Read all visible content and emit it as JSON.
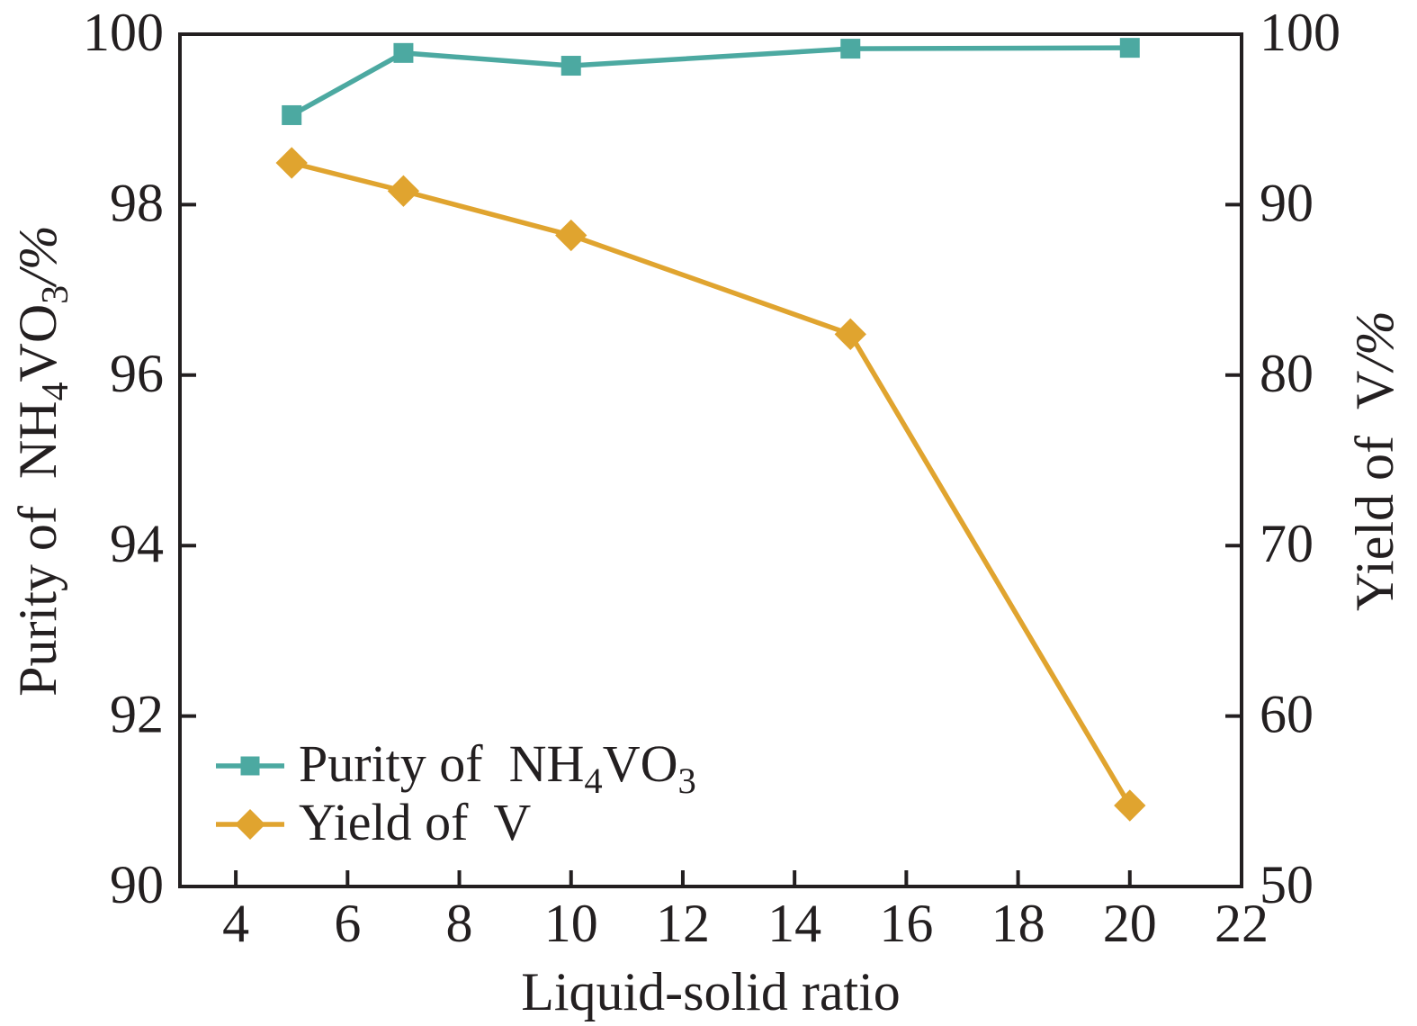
{
  "chart_data": {
    "type": "line",
    "title": "",
    "xlabel": "Liquid-solid ratio",
    "x": [
      5,
      7,
      10,
      15,
      20
    ],
    "xlim": [
      3,
      22
    ],
    "x_ticks": [
      4,
      6,
      8,
      10,
      12,
      14,
      16,
      18,
      20,
      22
    ],
    "grid": false,
    "background": "#FFFFFF",
    "axis_color": "#231F20",
    "left_axis": {
      "label": "Purity of NH4VO3/%",
      "label_segments": [
        {
          "t": "Purity of  NH"
        },
        {
          "t": "4",
          "sub": true
        },
        {
          "t": "VO"
        },
        {
          "t": "3",
          "sub": true
        },
        {
          "t": "/%",
          "italic": true
        }
      ],
      "lim": [
        90,
        100
      ],
      "ticks": [
        90,
        92,
        94,
        96,
        98,
        100
      ]
    },
    "right_axis": {
      "label": "Yield of V/%",
      "label_segments": [
        {
          "t": "Yield of  V"
        },
        {
          "t": "/%",
          "italic": true
        }
      ],
      "lim": [
        50,
        100
      ],
      "ticks": [
        50,
        60,
        70,
        80,
        90,
        100
      ]
    },
    "series": [
      {
        "id": "purity",
        "name": "Purity of NH4VO3",
        "axis": "left",
        "marker": "square",
        "color": "#4CA9A1",
        "values": [
          99.05,
          99.78,
          99.63,
          99.83,
          99.84
        ]
      },
      {
        "id": "yield",
        "name": "Yield of V",
        "axis": "right",
        "marker": "diamond",
        "color": "#E0A42F",
        "values": [
          92.45,
          90.8,
          88.2,
          82.4,
          54.75
        ]
      }
    ],
    "legend": {
      "position": "bottom-left",
      "border": false,
      "entries": [
        {
          "series": 0,
          "label": "Purity of NH4VO3",
          "label_segments": [
            {
              "t": "Purity of  NH"
            },
            {
              "t": "4",
              "sub": true
            },
            {
              "t": "VO"
            },
            {
              "t": "3",
              "sub": true
            }
          ]
        },
        {
          "series": 1,
          "label": "Yield of V",
          "label_segments": [
            {
              "t": "Yield of  V"
            }
          ]
        }
      ]
    }
  }
}
